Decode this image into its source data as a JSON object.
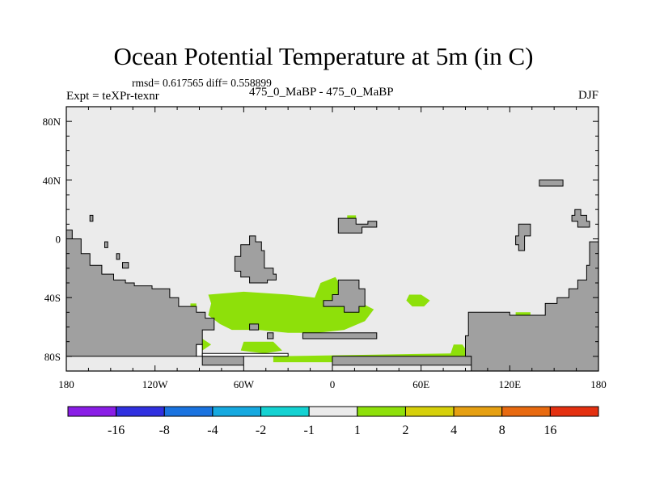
{
  "chart_data": {
    "type": "heatmap",
    "title": "Ocean Potential Temperature at 5m (in C)",
    "stats_text": "rmsd= 0.617565  diff= 0.558899",
    "experiment_label": "Expt = teXPr-texnr",
    "case_label": "475_0_MaBP - 475_0_MaBP",
    "season_label": "DJF",
    "x_ticks": [
      "180",
      "120W",
      "60W",
      "0",
      "60E",
      "120E",
      "180"
    ],
    "x_tick_values": [
      -180,
      -120,
      -60,
      0,
      60,
      120,
      180
    ],
    "y_ticks": [
      "80N",
      "40N",
      "0",
      "40S",
      "80S"
    ],
    "y_tick_values": [
      80,
      40,
      0,
      -40,
      -80
    ],
    "xlim": [
      -180,
      180
    ],
    "ylim": [
      -90,
      90
    ],
    "colorbar": {
      "labels": [
        "-16",
        "-8",
        "-4",
        "-2",
        "-1",
        "1",
        "2",
        "4",
        "8",
        "16"
      ],
      "colors": [
        "#8a1ee6",
        "#3030e0",
        "#1a73e0",
        "#16a9e0",
        "#14d2d2",
        "#ebebeb",
        "#8ee00a",
        "#d6d00a",
        "#e6a012",
        "#e86a10",
        "#e43010"
      ]
    },
    "field_colors": {
      "ocean_background": "#ebebeb",
      "land": "#a0a0a0",
      "positive_1_to_2": "#8ee00a",
      "light": "#ffffff"
    },
    "land_regions": [
      [
        [
          -180,
          6
        ],
        [
          -176,
          6
        ],
        [
          -176,
          0
        ],
        [
          -170,
          0
        ],
        [
          -170,
          -10
        ],
        [
          -164,
          -10
        ],
        [
          -164,
          -18
        ],
        [
          -156,
          -18
        ],
        [
          -156,
          -24
        ],
        [
          -148,
          -24
        ],
        [
          -148,
          -28
        ],
        [
          -140,
          -28
        ],
        [
          -140,
          -30
        ],
        [
          -134,
          -30
        ],
        [
          -134,
          -32
        ],
        [
          -122,
          -32
        ],
        [
          -122,
          -34
        ],
        [
          -110,
          -34
        ],
        [
          -110,
          -40
        ],
        [
          -104,
          -40
        ],
        [
          -104,
          -46
        ],
        [
          -92,
          -46
        ],
        [
          -92,
          -50
        ],
        [
          -86,
          -50
        ],
        [
          -86,
          -54
        ],
        [
          -80,
          -54
        ],
        [
          -80,
          -62
        ],
        [
          -88,
          -62
        ],
        [
          -88,
          -72
        ],
        [
          -92,
          -72
        ],
        [
          -92,
          -80
        ],
        [
          -180,
          -80
        ]
      ],
      [
        [
          -56,
          2
        ],
        [
          -52,
          2
        ],
        [
          -52,
          -2
        ],
        [
          -48,
          -2
        ],
        [
          -48,
          -8
        ],
        [
          -46,
          -8
        ],
        [
          -46,
          -20
        ],
        [
          -40,
          -20
        ],
        [
          -40,
          -24
        ],
        [
          -38,
          -24
        ],
        [
          -38,
          -28
        ],
        [
          -44,
          -28
        ],
        [
          -44,
          -30
        ],
        [
          -56,
          -30
        ],
        [
          -56,
          -26
        ],
        [
          -62,
          -26
        ],
        [
          -62,
          -22
        ],
        [
          -66,
          -22
        ],
        [
          -66,
          -12
        ],
        [
          -62,
          -12
        ],
        [
          -62,
          -4
        ],
        [
          -56,
          -4
        ]
      ],
      [
        [
          4,
          -28
        ],
        [
          18,
          -28
        ],
        [
          18,
          -34
        ],
        [
          22,
          -34
        ],
        [
          22,
          -46
        ],
        [
          18,
          -46
        ],
        [
          18,
          -50
        ],
        [
          8,
          -50
        ],
        [
          8,
          -46
        ],
        [
          -6,
          -46
        ],
        [
          -6,
          -42
        ],
        [
          0,
          -42
        ],
        [
          0,
          -38
        ],
        [
          4,
          -38
        ]
      ],
      [
        [
          4,
          14
        ],
        [
          16,
          14
        ],
        [
          16,
          10
        ],
        [
          24,
          10
        ],
        [
          24,
          12
        ],
        [
          30,
          12
        ],
        [
          30,
          8
        ],
        [
          20,
          8
        ],
        [
          20,
          4
        ],
        [
          4,
          4
        ]
      ],
      [
        [
          -88,
          -80
        ],
        [
          -60,
          -80
        ],
        [
          -60,
          -86
        ],
        [
          -88,
          -86
        ]
      ],
      [
        [
          0,
          -80
        ],
        [
          100,
          -80
        ],
        [
          100,
          -86
        ],
        [
          0,
          -86
        ]
      ],
      [
        [
          92,
          -50
        ],
        [
          120,
          -50
        ],
        [
          120,
          -52
        ],
        [
          144,
          -52
        ],
        [
          144,
          -44
        ],
        [
          152,
          -44
        ],
        [
          152,
          -40
        ],
        [
          160,
          -40
        ],
        [
          160,
          -34
        ],
        [
          166,
          -34
        ],
        [
          166,
          -28
        ],
        [
          172,
          -28
        ],
        [
          172,
          -18
        ],
        [
          174,
          -18
        ],
        [
          174,
          -2
        ],
        [
          180,
          -2
        ],
        [
          180,
          -90
        ],
        [
          94,
          -90
        ],
        [
          94,
          -80
        ],
        [
          90,
          -80
        ],
        [
          90,
          -66
        ],
        [
          92,
          -66
        ]
      ],
      [
        [
          164,
          20
        ],
        [
          168,
          20
        ],
        [
          168,
          16
        ],
        [
          172,
          16
        ],
        [
          172,
          12
        ],
        [
          174,
          12
        ],
        [
          174,
          8
        ],
        [
          166,
          8
        ],
        [
          166,
          12
        ],
        [
          162,
          12
        ],
        [
          162,
          16
        ],
        [
          164,
          16
        ]
      ],
      [
        [
          140,
          40
        ],
        [
          156,
          40
        ],
        [
          156,
          36
        ],
        [
          140,
          36
        ]
      ],
      [
        [
          126,
          10
        ],
        [
          134,
          10
        ],
        [
          134,
          2
        ],
        [
          130,
          2
        ],
        [
          130,
          -8
        ],
        [
          126,
          -8
        ],
        [
          126,
          -4
        ],
        [
          124,
          -4
        ],
        [
          124,
          2
        ],
        [
          126,
          2
        ]
      ],
      [
        [
          -164,
          16
        ],
        [
          -162,
          16
        ],
        [
          -162,
          12
        ],
        [
          -164,
          12
        ]
      ],
      [
        [
          -154,
          -2
        ],
        [
          -152,
          -2
        ],
        [
          -152,
          -6
        ],
        [
          -154,
          -6
        ]
      ],
      [
        [
          -146,
          -10
        ],
        [
          -144,
          -10
        ],
        [
          -144,
          -14
        ],
        [
          -146,
          -14
        ]
      ],
      [
        [
          -142,
          -16
        ],
        [
          -138,
          -16
        ],
        [
          -138,
          -20
        ],
        [
          -142,
          -20
        ]
      ],
      [
        [
          -56,
          -58
        ],
        [
          -50,
          -58
        ],
        [
          -50,
          -62
        ],
        [
          -56,
          -62
        ]
      ],
      [
        [
          -44,
          -64
        ],
        [
          -40,
          -64
        ],
        [
          -40,
          -68
        ],
        [
          -44,
          -68
        ]
      ],
      [
        [
          -20,
          -64
        ],
        [
          30,
          -64
        ],
        [
          30,
          -68
        ],
        [
          -20,
          -68
        ]
      ]
    ],
    "light_regions": [
      [
        [
          -92,
          -80
        ],
        [
          -88,
          -80
        ],
        [
          -88,
          -72
        ],
        [
          -92,
          -72
        ]
      ],
      [
        [
          -88,
          -78
        ],
        [
          -30,
          -78
        ],
        [
          -30,
          -80
        ],
        [
          -88,
          -80
        ]
      ]
    ],
    "positive_1_to_2_regions": [
      [
        [
          -84,
          -38
        ],
        [
          -60,
          -36
        ],
        [
          -30,
          -38
        ],
        [
          -12,
          -40
        ],
        [
          -8,
          -30
        ],
        [
          2,
          -26
        ],
        [
          8,
          -36
        ],
        [
          20,
          -44
        ],
        [
          28,
          -48
        ],
        [
          22,
          -56
        ],
        [
          8,
          -62
        ],
        [
          -10,
          -64
        ],
        [
          -30,
          -64
        ],
        [
          -50,
          -62
        ],
        [
          -68,
          -62
        ],
        [
          -76,
          -58
        ],
        [
          -84,
          -52
        ],
        [
          -82,
          -44
        ]
      ],
      [
        [
          52,
          -38
        ],
        [
          60,
          -38
        ],
        [
          66,
          -42
        ],
        [
          62,
          -46
        ],
        [
          54,
          -46
        ],
        [
          50,
          -42
        ]
      ],
      [
        [
          -96,
          -72
        ],
        [
          -88,
          -68
        ],
        [
          -82,
          -72
        ],
        [
          -88,
          -76
        ],
        [
          -96,
          -76
        ]
      ],
      [
        [
          -60,
          -70
        ],
        [
          -40,
          -70
        ],
        [
          -34,
          -76
        ],
        [
          -46,
          -78
        ],
        [
          -62,
          -76
        ]
      ],
      [
        [
          -40,
          -80
        ],
        [
          80,
          -78
        ],
        [
          82,
          -72
        ],
        [
          88,
          -72
        ],
        [
          92,
          -78
        ],
        [
          96,
          -84
        ],
        [
          -40,
          -84
        ]
      ],
      [
        [
          10,
          16
        ],
        [
          16,
          16
        ],
        [
          16,
          14
        ],
        [
          10,
          14
        ]
      ],
      [
        [
          124,
          -50
        ],
        [
          134,
          -50
        ],
        [
          134,
          -54
        ],
        [
          124,
          -54
        ]
      ],
      [
        [
          -96,
          -44
        ],
        [
          -92,
          -44
        ],
        [
          -92,
          -48
        ],
        [
          -96,
          -48
        ]
      ]
    ]
  }
}
